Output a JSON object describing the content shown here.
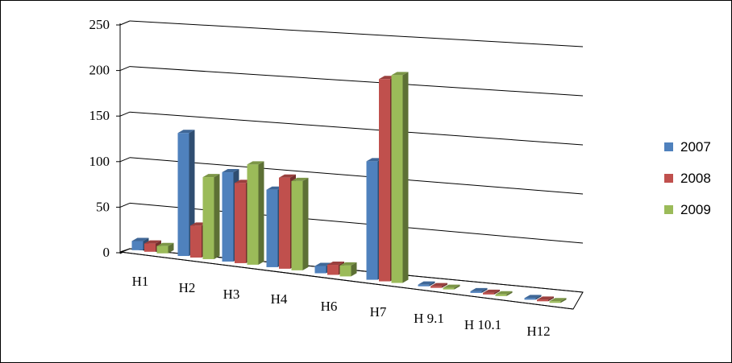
{
  "chart_data": {
    "type": "bar",
    "categories": [
      "H1",
      "H2",
      "H3",
      "H4",
      "H6",
      "H7",
      "H 9.1",
      "H 10.1",
      "H12"
    ],
    "series": [
      {
        "name": "2007",
        "values": [
          10,
          135,
          98,
          85,
          8,
          130,
          0,
          0,
          0
        ]
      },
      {
        "name": "2008",
        "values": [
          9,
          35,
          88,
          100,
          11,
          222,
          0,
          0,
          0
        ]
      },
      {
        "name": "2009",
        "values": [
          8,
          90,
          110,
          98,
          12,
          228,
          0,
          0,
          0
        ]
      }
    ],
    "colors": [
      "#4f81bd",
      "#c0504d",
      "#9bbb59"
    ],
    "yticks": [
      "0",
      "50",
      "100",
      "150",
      "200",
      "250"
    ],
    "ylim": [
      0,
      250
    ],
    "grid": true,
    "legend_position": "right",
    "style": "3d-clustered-column"
  }
}
